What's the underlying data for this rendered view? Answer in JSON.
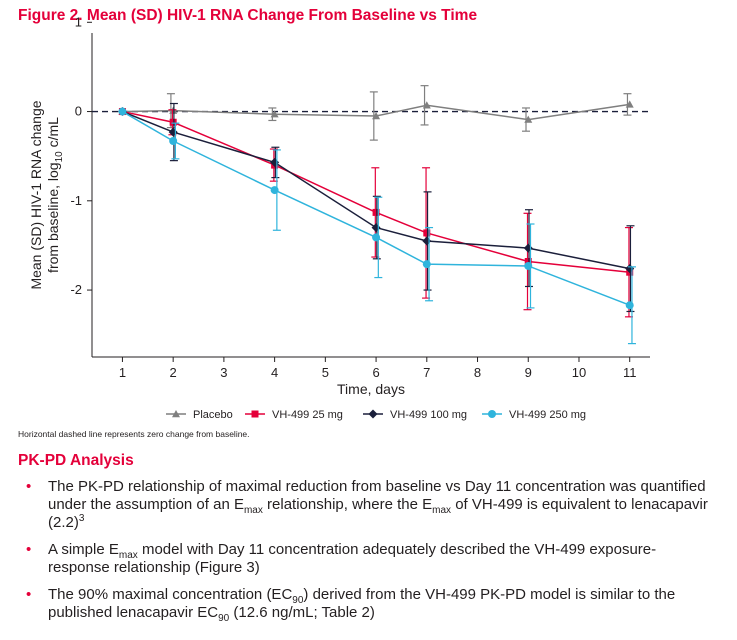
{
  "figure_title": "Figure 2. Mean (SD) HIV-1 RNA Change From Baseline vs Time",
  "footnote": "Horizontal dashed line represents zero change from baseline.",
  "section_title": "PK-PD Analysis",
  "bullets": [
    {
      "parts": [
        "The PK-PD relationship of maximal reduction from baseline vs Day 11 concentration was quantified under the assumption of an E",
        "max",
        " relationship, where the E",
        "max",
        " of VH-499 is equivalent to lenacapavir (2.2)",
        "3",
        ""
      ]
    },
    {
      "parts": [
        "A simple E",
        "max",
        " model with Day 11 concentration adequately described the VH-499 exposure-response relationship (Figure 3)"
      ]
    },
    {
      "parts": [
        "The 90% maximal concentration (EC",
        "90",
        ") derived from the VH-499 PK-PD model is similar to the published lenacapavir EC",
        "90",
        " (12.6 ng/mL; Table 2)"
      ]
    }
  ],
  "chart_data": {
    "type": "line",
    "xlabel": "Time, days",
    "ylabel_line1": "Mean (SD) HIV-1 RNA change",
    "ylabel_line2_main": "from baseline, log",
    "ylabel_line2_sub": "10",
    "ylabel_line2_end": " c/mL",
    "xlim": [
      0.4,
      11.4
    ],
    "ylim": [
      -2.75,
      0.88
    ],
    "x_ticks": [
      1,
      2,
      3,
      4,
      5,
      6,
      7,
      8,
      9,
      10,
      11
    ],
    "y_ticks": [
      1,
      0,
      -1,
      -2
    ],
    "zero_line": "dashed",
    "legend_position": "bottom",
    "series": [
      {
        "name": "Placebo",
        "color": "#7f7f7f",
        "marker": "triangle",
        "x": [
          1,
          2,
          4,
          6,
          7,
          9,
          11
        ],
        "y": [
          0,
          0.01,
          -0.03,
          -0.05,
          0.07,
          -0.09,
          0.08
        ],
        "sd": [
          0.0,
          0.19,
          0.07,
          0.27,
          0.22,
          0.13,
          0.12
        ]
      },
      {
        "name": "VH-499 25 mg",
        "color": "#e4003a",
        "marker": "square",
        "x": [
          1,
          2,
          4,
          6,
          7,
          9,
          11
        ],
        "y": [
          0,
          -0.12,
          -0.6,
          -1.13,
          -1.36,
          -1.68,
          -1.8
        ],
        "sd": [
          0.0,
          0.14,
          0.18,
          0.5,
          0.73,
          0.54,
          0.5
        ]
      },
      {
        "name": "VH-499 100 mg",
        "color": "#1b1f3b",
        "marker": "diamond",
        "x": [
          1,
          2,
          4,
          6,
          7,
          9,
          11
        ],
        "y": [
          0,
          -0.23,
          -0.57,
          -1.3,
          -1.45,
          -1.53,
          -1.76
        ],
        "sd": [
          0.0,
          0.32,
          0.17,
          0.35,
          0.55,
          0.43,
          0.48
        ]
      },
      {
        "name": "VH-499 250 mg",
        "color": "#2fb4dc",
        "marker": "circle",
        "x": [
          1,
          2,
          4,
          6,
          7,
          9,
          11
        ],
        "y": [
          0,
          -0.33,
          -0.88,
          -1.41,
          -1.71,
          -1.73,
          -2.17
        ],
        "sd": [
          0.0,
          0.2,
          0.45,
          0.45,
          0.41,
          0.47,
          0.43
        ]
      }
    ]
  }
}
